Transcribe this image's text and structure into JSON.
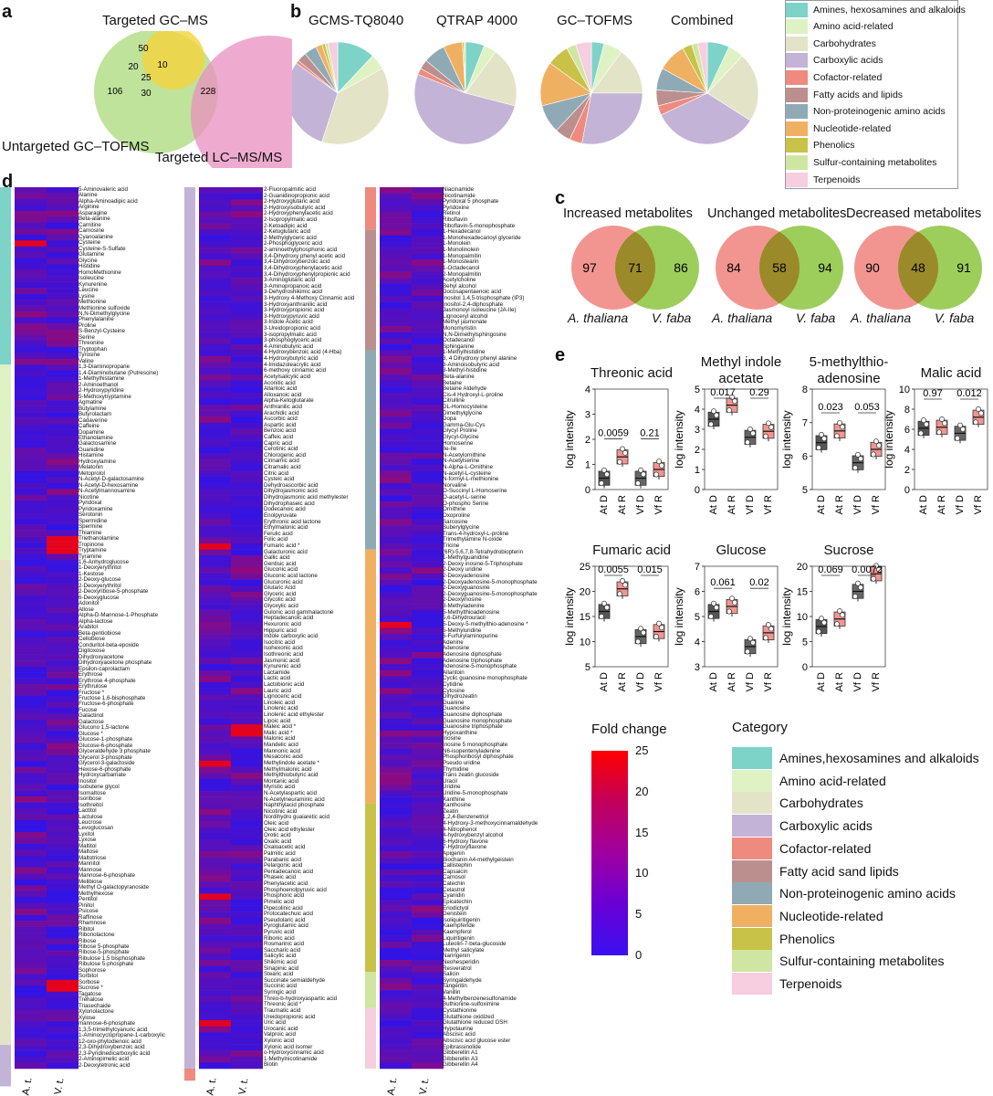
{
  "panels": {
    "a": "a",
    "b": "b",
    "c": "c",
    "d": "d",
    "e": "e"
  },
  "venn_a": {
    "labels": [
      "Targeted GC–MS",
      "Untargeted GC–TOFMS",
      "Targeted LC–MS/MS"
    ],
    "values": {
      "gc_only": "50",
      "gc_tof": "20",
      "gc_lc": "10",
      "all": "25",
      "tof_only": "106",
      "tof_lc": "30",
      "lc_only": "228"
    },
    "colors": {
      "gc": "#f6d23c",
      "tof": "#a9da78",
      "lc": "#e98fbf"
    }
  },
  "pies_b": {
    "titles": [
      "GCMS-TQ8040",
      "QTRAP 4000",
      "GC–TOFMS",
      "Combined"
    ],
    "slices": [
      [
        12,
        5,
        38,
        30,
        1,
        3,
        4,
        2,
        1,
        1,
        3
      ],
      [
        6,
        4,
        19,
        52,
        2,
        3,
        7,
        6,
        0.5,
        0.5,
        0
      ],
      [
        4,
        6,
        15,
        28,
        4,
        5,
        9,
        14,
        7,
        3,
        5
      ],
      [
        7,
        5,
        22,
        34,
        3,
        5,
        7,
        9,
        3,
        2,
        3
      ]
    ]
  },
  "categories_b": [
    {
      "name": "Amines, hexosamines and alkaloids",
      "color": "#7dd3c8"
    },
    {
      "name": "Amino acid-related",
      "color": "#dff2c4"
    },
    {
      "name": "Carbohydrates",
      "color": "#e3e3c8"
    },
    {
      "name": "Carboxylic acids",
      "color": "#c3b3d6"
    },
    {
      "name": "Cofactor-related",
      "color": "#ef8a7f"
    },
    {
      "name": "Fatty acids and lipids",
      "color": "#bc8f8f"
    },
    {
      "name": "Non-proteinogenic amino acids",
      "color": "#8faab4"
    },
    {
      "name": "Nucleotide-related",
      "color": "#f0b061"
    },
    {
      "name": "Phenolics",
      "color": "#c9c248"
    },
    {
      "name": "Sulfur-containing metabolites",
      "color": "#cfe6a3"
    },
    {
      "name": "Terpenoids",
      "color": "#f7cde0"
    }
  ],
  "categories_d": [
    {
      "name": "Amines,hexosamines and alkaloids",
      "color": "#7dd3c8"
    },
    {
      "name": "Amino acid-related",
      "color": "#dff2c4"
    },
    {
      "name": "Carbohydrates",
      "color": "#e3e3c8"
    },
    {
      "name": "Carboxylic acids",
      "color": "#c3b3d6"
    },
    {
      "name": "Cofactor-related",
      "color": "#ef8a7f"
    },
    {
      "name": "Fatty acid sand lipids",
      "color": "#bc8f8f"
    },
    {
      "name": "Non-proteinogenic amino acids",
      "color": "#8faab4"
    },
    {
      "name": "Nucleotide-related",
      "color": "#f0b061"
    },
    {
      "name": "Phenolics",
      "color": "#c9c248"
    },
    {
      "name": "Sulfur-containing metabolites",
      "color": "#cfe6a3"
    },
    {
      "name": "Terpenoids",
      "color": "#f7cde0"
    }
  ],
  "legend_d": {
    "fold_change_title": "Fold change",
    "category_title": "Category",
    "scale_ticks": [
      "25",
      "20",
      "15",
      "10",
      "5",
      "0"
    ]
  },
  "venn_c": [
    {
      "title": "Increased metabolites",
      "left": "97",
      "mid": "71",
      "right": "86"
    },
    {
      "title": "Unchanged metabolites",
      "left": "84",
      "mid": "58",
      "right": "94"
    },
    {
      "title": "Decreased metabolites",
      "left": "90",
      "mid": "48",
      "right": "91"
    }
  ],
  "venn_c_species": [
    "A. thaliana",
    "V. faba"
  ],
  "boxplots_e": {
    "ylabel": "log intensity",
    "groups": [
      "At D",
      "At R",
      "Vf D",
      "Vf R"
    ],
    "plots": [
      {
        "title": "Threonic acid",
        "ylim": [
          0,
          4
        ],
        "ticks": [
          "0",
          "1",
          "2",
          "3",
          "4"
        ],
        "p": [
          "0.0059",
          "0.21"
        ],
        "med": [
          0.45,
          1.3,
          0.45,
          0.8
        ]
      },
      {
        "title": "Methyl indole\nacetate",
        "ylim": [
          0,
          5
        ],
        "ticks": [
          "0",
          "1",
          "2",
          "3",
          "4",
          "5"
        ],
        "p": [
          "0.017",
          "0.29"
        ],
        "med": [
          3.5,
          4.2,
          2.6,
          2.9
        ]
      },
      {
        "title": "5-methylthio-\nadenosine",
        "ylim": [
          5,
          8
        ],
        "ticks": [
          "5",
          "6",
          "7",
          "8"
        ],
        "p": [
          "0.023",
          "0.053"
        ],
        "med": [
          6.4,
          6.75,
          5.8,
          6.2
        ]
      },
      {
        "title": "Malic acid",
        "ylim": [
          0,
          10
        ],
        "ticks": [
          "0",
          "2",
          "4",
          "6",
          "8",
          "10"
        ],
        "p": [
          "0.97",
          "0.012"
        ],
        "med": [
          6.1,
          6.2,
          5.6,
          7.2
        ]
      },
      {
        "title": "Fumaric acid",
        "ylim": [
          5,
          25
        ],
        "ticks": [
          "5",
          "10",
          "15",
          "20",
          "25"
        ],
        "p": [
          "0.0055",
          "0.015"
        ],
        "med": [
          16,
          20.5,
          11,
          12
        ]
      },
      {
        "title": "Glucose",
        "ylim": [
          3,
          7
        ],
        "ticks": [
          "3",
          "4",
          "5",
          "6",
          "7"
        ],
        "p": [
          "0.061",
          "0.02"
        ],
        "med": [
          5.2,
          5.4,
          3.8,
          4.35
        ]
      },
      {
        "title": "Sucrose",
        "ylim": [
          0,
          20
        ],
        "ticks": [
          "0",
          "5",
          "10",
          "15",
          "20"
        ],
        "p": [
          "0.069",
          "0.0072"
        ],
        "med": [
          8,
          9.5,
          15,
          18.5
        ]
      }
    ]
  },
  "heatmap_cols": [
    "A. t.",
    "V. t."
  ],
  "heatmap_col1": [
    "5-Aminovaleric acid",
    "Alanine",
    "Alpha-Aminoadipic acid",
    "Arginine",
    "Asparagine",
    "Beta-alanine",
    "Carnitine",
    "Carnosine",
    "Cyanoalanine",
    "Cysteine",
    "Cysteine-S-Sulfate",
    "Glutamine",
    "Glycine",
    "Histidine",
    "HomoMethionine",
    "Isoleucine",
    "Kynurenine",
    "Leucine",
    "Lysine",
    "Methionine",
    "Methionine sulfoxide",
    "N,N-Dimethylglycine",
    "Phenylalanine",
    "Proline",
    "S-Benzyl-Cysteine",
    "Serine",
    "Threonine",
    "Tryptophan",
    "Tyrosine",
    "Valine",
    "1,3-Diaminopropane",
    "1,4-Diaminobutane (Putrescine)",
    "1-Methylhistamine",
    "2-Aminoethanol",
    "2-Hydroxypyridine",
    "5-Methoxytryptamine",
    "Agmatine",
    "Butylamine",
    "Butyrolactam",
    "Cadaverine",
    "Caffeine",
    "Dopamine",
    "Ethanolamine",
    "Galactosamine",
    "Guanidine",
    "Histamine",
    "Hydroxylamine",
    "Melatonin",
    "Metoprolol",
    "N-Acetyl-D-galactosamine",
    "N-Acetyl-D-hexosamine",
    "N-Acetylmannosamine",
    "Nicotine",
    "Pyridoxal",
    "Pyridoxamine",
    "Serotonin",
    "Spermidine",
    "Spermine",
    "Thiamine",
    "Triethanolamine",
    "Tropinone",
    "Tryptamine",
    "Tyramine",
    "1,6-Anhydroglucose",
    "1-Deoxyerythritol",
    "1-Kestose",
    "2-Deoxy-glucose",
    "2-Deoxyerythritol",
    "2-Deoxyribose-5-phosphate",
    "6-Deoxyglucose",
    "Adonitol",
    "Allose",
    "Alpha-D-Mannose-1-Phosphate",
    "Alpha-lactose",
    "Arabitol",
    "Beta-gentiobiose",
    "Cellobiose",
    "Conduritol-beta-epoxide",
    "Digitoxose",
    "Dihydroxyacetone",
    "Dihydroxyacetone phosphate",
    "Epsilon-caprolactam",
    "Erythrose",
    "Erythrose 4-phosphate",
    "Erythrulose",
    "Fructose *",
    "Fructose 1,6-bisphosphate",
    "Fructose-6-phosphate",
    "Fucose",
    "Galactinol",
    "Galactose",
    "Glucono 1,5-lactone",
    "Glucose *",
    "Glucose-1-phosphate",
    "Glucose-6-phosphate",
    "Glyceraldehyde 3 phosphate",
    "Glycerol 3-phosphate",
    "Glycerol-3-galactoside",
    "Hexose-6-phosphate",
    "Hydroxycarbamate",
    "Inositol",
    "Isobutene glycol",
    "Isomaltose",
    "Isoribose",
    "Isothreitol",
    "Lactitol",
    "Lactulose",
    "Leucrose",
    "Levoglucosan",
    "Lyxitol",
    "Lyxose",
    "Maltitol",
    "Maltose",
    "Maltotriose",
    "Mannitol",
    "Mannose",
    "Mannose-6-phosphate",
    "Melibiose",
    "Methyl O-galactopyranoside",
    "Methylhexose",
    "Pentitol",
    "Pinitol",
    "Psicose",
    "Raffinose",
    "Rhamnose",
    "Ribitol",
    "Ribonolactone",
    "Ribose",
    "Ribose 5-phosphate",
    "Ribose-5-phosphate",
    "Ribulose 1,5 bisphosphate",
    "Ribulose 5-phosphate",
    "Sophorose",
    "Sorbitol",
    "Sorbose",
    "Sucrose *",
    "Tagatose",
    "Trehalose",
    "Triasechaide",
    "Xylonolactone",
    "Xylose",
    "mannose-6-phosphate",
    "1,3,5-trimethylcyanuric acid",
    "1-Aminocyclopropane-1-carboxylic",
    "12-oxo-phytodienoic acid",
    "2,3-Dihydroxybenzoic acid",
    "2,3-Pyridinedicarboxylic acid",
    "2-Aminopimelic acid",
    "2-Deoxytetronic acid"
  ],
  "heatmap_col2": [
    "2-Fluoropalmitic acid",
    "2-Guanidinopropionic acid",
    "2-Hydroxyglutaric acid",
    "2-Hydroxyisobutyric acid",
    "2-Hydroxyphenylacetic acid",
    "2-Isopropylmalic acid",
    "2-Ketoadipic acid",
    "2-Ketoglutaric acid",
    "2-Methylglyceric acid",
    "2-Phosphoglyceric acid",
    "2-aminoethylphosphonic acid",
    "3,4-Dihydroxy phenyl acetic acid",
    "3,4-Dihydroxybenzoic acid",
    "3,4-Dihydroxyphenylacetic acid",
    "3,4-Dihydroxyphenylpropionic acid",
    "3-Aminoglutaric acid",
    "3-Aminopropanoic acid",
    "3-Dehydroshikimic acid",
    "3-Hydroxy 4-Methoxy Cinnamic acid",
    "3-Hydroxyanthranilic acid",
    "3-Hydroxypropionic acid",
    "3-Hydroxypyruvic acid",
    "3-Indole Acetic acid",
    "3-Ureidopropionic acid",
    "3-isopropylmalic acid",
    "3-phosphoglyceric acid",
    "4-Aminobutyric acid",
    "4-Hydroxybenzoic acid (4-Hba)",
    "4-Hydroxybutyric acid",
    "4-Imidazoleacrylic acid",
    "6-methoxy cinnamic acid",
    "Acetylsalicylic acid",
    "Aconitic acid",
    "Allantoic acid",
    "Alloxanoic acid",
    "Alpha-Ketoglutarate",
    "Anthranilic acid",
    "Arachidic acid",
    "Ascorbic acid",
    "Aspartic acid",
    "Benzoic acid",
    "Caffeic acid",
    "Capric acid",
    "Cerotinic acid",
    "Chlorogenic acid",
    "Cinnamic acid",
    "Citramalic acid",
    "Citric acid",
    "Cysteic acid",
    "Dehydroascorbic acid",
    "Dihydrojasmonic acid",
    "Dihydrojasmonic acid methylester",
    "Dihydrophaseic acid",
    "Dodecanoic acid",
    "Enolpyruvate",
    "Erythronic acid lactone",
    "Ethylmalonic acid",
    "Ferulic acid",
    "Folic acid",
    "Fumaric acid *",
    "Galacturonic acid",
    "Gallic acid",
    "Gentisic acid",
    "Gluconic acid",
    "Gluconic acid lactone",
    "Glucuronic acid",
    "Glutaric Acid",
    "Glyceric acid",
    "Glycolic acid",
    "Glyoxylic acid",
    "Gulonic acid gammalactone",
    "Heptadecanoic acid",
    "Hexuronic acid",
    "Hippuric acid",
    "Indole carboxylic acid",
    "Isocitric acid",
    "Isohexonic acid",
    "Isothreonic acid",
    "Jasmonic acid",
    "Kynurenic acid",
    "Lactamide",
    "Lactic acid",
    "Lactobionic acid",
    "Lauric acid",
    "Lignoceric acid",
    "Linoleic acid",
    "Linolenic acid",
    "Linolenic acid ethylester",
    "Lipoic acid",
    "Maleic acid *",
    "Malic acid *",
    "Malonic acid",
    "Mandelic acid",
    "Mannonic acid",
    "Mesaconic acid",
    "Methylindole acetate *",
    "Methylmalonic acid",
    "Methylthiobutyric acid",
    "Montanic acid",
    "Myristic acid",
    "N-Acetylaspartic acid",
    "N-Acetylneuraminic acid",
    "Naphthylacid phosphate",
    "Nicotinic acid",
    "Nordihydro guaiaretic acid",
    "Oleic acid",
    "Oleic acid ethylester",
    "Orotic acid",
    "Oxalic acid",
    "Oxaloacetic acid",
    "Palmitic acid",
    "Parabanic acid",
    "Pelargonic acid",
    "Pentadecanoic acid",
    "Phaseic acid",
    "Phenylacetic acid",
    "Phosphoenolpyruvic acid",
    "Phosphoric acid",
    "Pimelic acid",
    "Pipecolinic acid",
    "Protocatechuic acid",
    "Pseudolaric acid",
    "Pyroglutamic acid",
    "Pyruvic acid",
    "Ribonic acid",
    "Rosmarinic acid",
    "Saccharic acid",
    "Salicylic acid",
    "Shikimic acid",
    "Sinapinic acid",
    "Stearic acid",
    "Succinate semialdehyde",
    "Succinic acid",
    "Syringic acid",
    "Threo-b-hydroxyaspartic acid",
    "Threonic acid *",
    "Traumatic acid",
    "Ureidopropionic acid",
    "Uric acid",
    "Urocanic acid",
    "Valproic acid",
    "Xylonic acid",
    "Xylonic acid isomer",
    "o-Hydroxycinnamic acid",
    "1-Methylnicotinamide",
    "Biotin"
  ],
  "heatmap_col3": [
    "Niacinamide",
    "Nicotinamide",
    "Pyridoxal 5 phosphate",
    "Pyridoxine",
    "Retinol",
    "Riboflavin",
    "Riboflavin-5-monophosphate",
    "1-Hexadecanol",
    "1-Monohexadecanoyl glyceride",
    "1-Monolein",
    "1-Monolinolein",
    "1-Monopalmitin",
    "1-Monostearin",
    "1-Octadecanol",
    "2-Monopalmitin",
    "Acetylcholine",
    "Behyl alcohol",
    "Docosapentaenoic acid",
    "Inositol 1,4,5-trisphosphate (IP3)",
    "Inositol-2,4-diphosphate",
    "Jasmonoyl isoleucine (JA-Ile)",
    "Lignoceryl alcohol",
    "Methyl jasmonate",
    "Monomyristin",
    "N,N-Dimethylsphingosine",
    "Octadecanol",
    "Sphinganine",
    "1-Methylhistidine",
    "3, 4 Dihydroxy phenyl alanine",
    "3-Aminoisobutyric acid",
    "3-Methyl-histidine",
    "Beta-alanine",
    "Betaine",
    "Betaine Aldehyde",
    "Cis-4 Hydroxyl-L-proline",
    "Citrulline",
    "DL-Homocysteine",
    "Dimethylglycine",
    "Dopa",
    "Gamma-Glu-Cys",
    "Glycyl Proline",
    "Glycyl-Glycine",
    "Homoserine",
    "Ile-Ile",
    "N-Acetylornithine",
    "N-Acetylserine",
    "N-Alpha-L-Ornithine",
    "N-acetyl-L-cysteine",
    "N-formyl-L-methionine",
    "Norvaline",
    "O-Succinyl L-Homoserine",
    "O-acetyl-L-serine",
    "O-phospho Serine",
    "Ornithine",
    "Oxoproline",
    "Sarcosine",
    "Suberylglycine",
    "Trans-4-hydroxyl-L-proline",
    "Trimethylamine N-oxide",
    "Tricine",
    "(6R)-5,6,7,8-Tetrahydrobiopterin",
    "1-Methylguanidine",
    "2-Deoxy inosine-5-Triphosphate",
    "2-Deoxy uridine",
    "2-Deoxyadenosine",
    "2-Deoxyadenosine-5-monophosphate",
    "2-Deoxyguanosine",
    "2-Deoxyguanosine-5-monophosphate",
    "2-Deoxyinosine",
    "3-Methyladenine",
    "5-Methylthioadenosine",
    "5,6-Dihydrouracil",
    "5-Deoxy-5-methylthio-adenosine *",
    "5-Methyluridine",
    "6-Furfurylaminopurine",
    "Adenine",
    "Adenosine",
    "Adenosine diphosphate",
    "Adenosine triphosphate",
    "Adenosine-5-monophosphate",
    "Allantoin",
    "Cyclic guanosine monophosphate",
    "Cytidine",
    "Cytosine",
    "Dihydrozeatin",
    "Guanine",
    "Guanosine",
    "Guanosine diphosphate",
    "Guanosine monophosphate",
    "Guanosine triphosphate",
    "Hypoxanthine",
    "Inosine",
    "Inosine 5 monophosphate",
    "N6-isopentenyladenine",
    "Phosphoribosyl diphosphate",
    "Pseudo uridine",
    "Thymidine",
    "Trans zeatin glucoside",
    "Uracil",
    "Uridine",
    "Uridine-5-monophosphate",
    "Xanthine",
    "Xanthosine",
    "Zeatin",
    "1,2,4-Benzenetriol",
    "4-Hydroxy-3-methoxycinnamaldehyde",
    "4-Nitrophenol",
    "4-hydroxybenzyl alcohol",
    "6-Hydroxy flavone",
    "7-Hydroxyflavone",
    "Apigenin",
    "Biochanin A4-methylgeistein",
    "Callistephin",
    "Capsaicin",
    "Carnosol",
    "Catechin",
    "Celastrol",
    "Cyanidin",
    "Epicatechin",
    "Eriodictyol",
    "Genistein",
    "Isoliquiritigenin",
    "Kaempferide",
    "Kaempferol",
    "Liquiritigenin",
    "Luteolin-7-beta-glucoside",
    "Methyl salicylate",
    "Naringenin",
    "Neohesperidin",
    "Resveratrol",
    "Salicin",
    "Syringaldehyde",
    "Tangeritin",
    "Vanillin",
    "4-Methylbenzenesulfonamide",
    "Buthionine-sulfoximine",
    "Cystathionine",
    "Glutathione oxidized",
    "Glutathione reduced GSH",
    "Hypotaurine",
    "Abscisic acid",
    "Abscisic acid glucose ester",
    "Epibrassinolide",
    "Gibberellin A1",
    "Gibberellin A3",
    "Gibberellin A4"
  ]
}
